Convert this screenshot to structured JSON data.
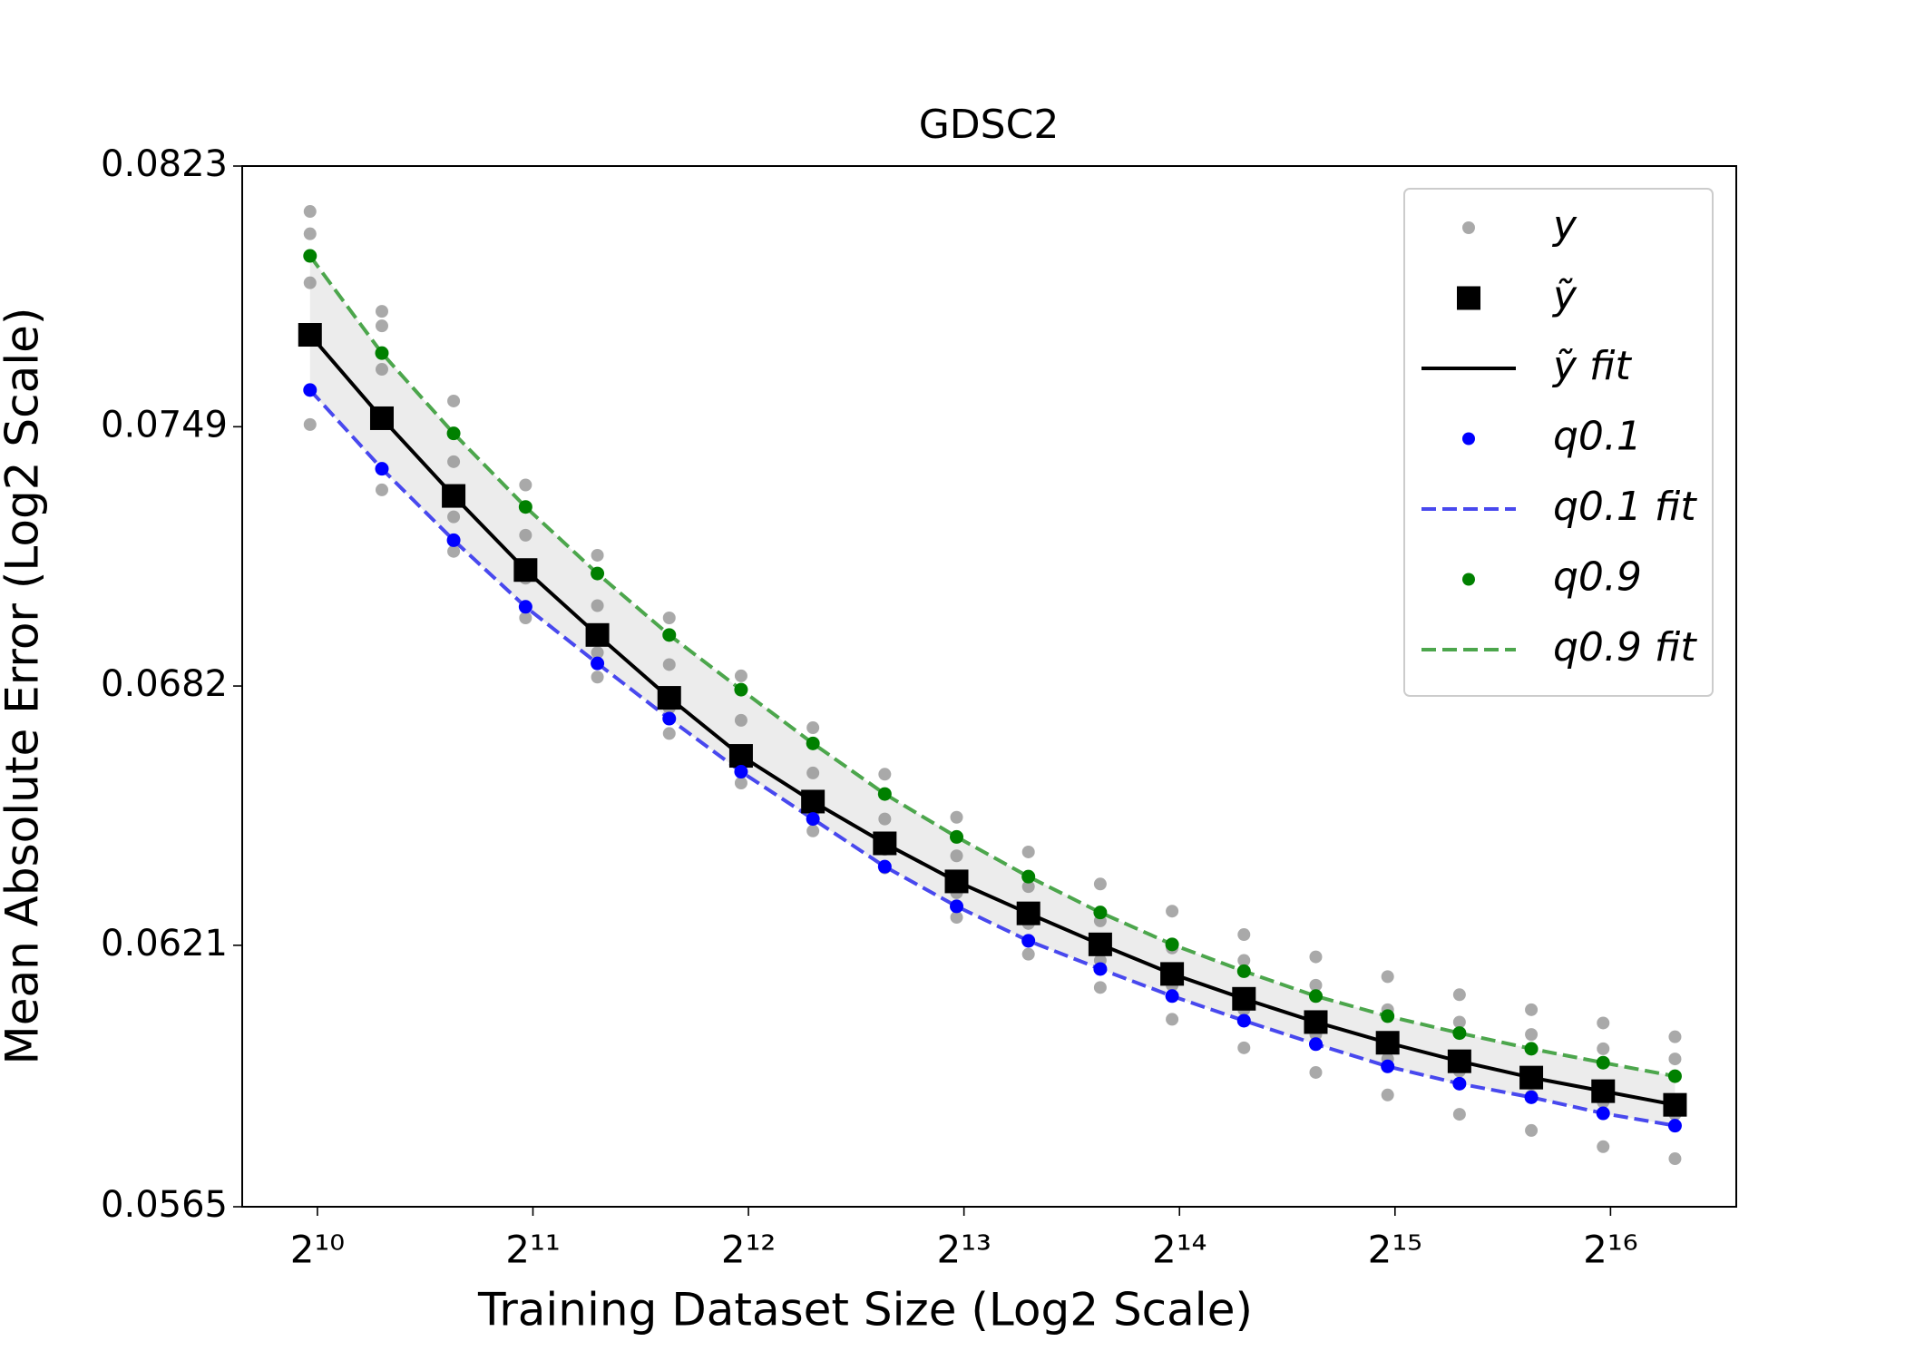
{
  "chart_data": {
    "type": "line",
    "title": "GDSC2",
    "x_label": "Training Dataset Size (Log2 Scale)",
    "y_label": "Mean Absolute Error (Log2 Scale)",
    "x_scale": "log2",
    "y_scale": "log2",
    "grid": false,
    "legend": "upper right",
    "band_color": "#ececec",
    "xlim": [
      804,
      98200
    ],
    "xticks": [
      {
        "value": 1024,
        "label": "2¹⁰"
      },
      {
        "value": 2048,
        "label": "2¹¹"
      },
      {
        "value": 4096,
        "label": "2¹²"
      },
      {
        "value": 8192,
        "label": "2¹³"
      },
      {
        "value": 16384,
        "label": "2¹⁴"
      },
      {
        "value": 32768,
        "label": "2¹⁵"
      },
      {
        "value": 65536,
        "label": "2¹⁶"
      }
    ],
    "ylim": [
      0.0565,
      0.0823
    ],
    "yticks": [
      0.0565,
      0.0621,
      0.0682,
      0.0749,
      0.0823
    ],
    "x": [
      1000,
      1260,
      1587,
      2000,
      2520,
      3175,
      4000,
      5040,
      6350,
      8000,
      10079,
      12699,
      16000,
      20159,
      25398,
      32000,
      40317,
      50797,
      64000,
      80635
    ],
    "series": [
      {
        "name": "y",
        "color": "#8c8c8c",
        "marker": "o",
        "x": [
          1000,
          1000,
          1000,
          1000,
          1260,
          1260,
          1260,
          1260,
          1587,
          1587,
          1587,
          1587,
          2000,
          2000,
          2000,
          2000,
          2520,
          2520,
          2520,
          2520,
          3175,
          3175,
          3175,
          3175,
          4000,
          4000,
          4000,
          4000,
          5040,
          5040,
          5040,
          5040,
          6350,
          6350,
          6350,
          6350,
          8000,
          8000,
          8000,
          8000,
          10079,
          10079,
          10079,
          10079,
          12699,
          12699,
          12699,
          12699,
          16000,
          16000,
          16000,
          16000,
          20159,
          20159,
          20159,
          20159,
          25398,
          25398,
          25398,
          25398,
          32000,
          32000,
          32000,
          32000,
          40317,
          40317,
          40317,
          40317,
          50797,
          50797,
          50797,
          50797,
          64000,
          64000,
          64000,
          64000,
          80635,
          80635,
          80635,
          80635
        ],
        "values": [
          0.08096,
          0.08031,
          0.0789,
          0.07496,
          0.07809,
          0.07768,
          0.07647,
          0.07321,
          0.0756,
          0.07396,
          0.0725,
          0.0716,
          0.07334,
          0.07202,
          0.07091,
          0.0699,
          0.0715,
          0.07021,
          0.06903,
          0.06842,
          0.0699,
          0.06873,
          0.06766,
          0.06704,
          0.06845,
          0.06736,
          0.06632,
          0.06585,
          0.06718,
          0.06609,
          0.06515,
          0.06472,
          0.06606,
          0.065,
          0.06429,
          0.06386,
          0.06504,
          0.06414,
          0.06329,
          0.06273,
          0.06423,
          0.06343,
          0.06259,
          0.0619,
          0.06349,
          0.06265,
          0.06176,
          0.06116,
          0.06287,
          0.06204,
          0.06121,
          0.06046,
          0.06234,
          0.06176,
          0.06067,
          0.05984,
          0.06184,
          0.06121,
          0.06013,
          0.05931,
          0.0614,
          0.06067,
          0.0596,
          0.05883,
          0.061,
          0.0604,
          0.05934,
          0.05842,
          0.06067,
          0.06013,
          0.05881,
          0.05808,
          0.06038,
          0.05982,
          0.05868,
          0.05774,
          0.06008,
          0.0596,
          0.05842,
          0.05749
        ]
      },
      {
        "name": "ỹ",
        "color": "#000000",
        "marker": "s",
        "values": [
          0.07743,
          0.07513,
          0.07305,
          0.07112,
          0.06947,
          0.06791,
          0.0665,
          0.06541,
          0.06443,
          0.06355,
          0.06282,
          0.06212,
          0.06146,
          0.06091,
          0.0604,
          0.05995,
          0.05955,
          0.0592,
          0.05891,
          0.05862
        ]
      },
      {
        "name": "ỹ fit",
        "color": "#000000",
        "linestyle": "solid",
        "values": [
          0.07743,
          0.07513,
          0.07305,
          0.07112,
          0.06947,
          0.06791,
          0.0665,
          0.06541,
          0.06443,
          0.06355,
          0.06282,
          0.06212,
          0.06146,
          0.06091,
          0.0604,
          0.05995,
          0.05955,
          0.0592,
          0.05891,
          0.05862
        ]
      },
      {
        "name": "q0.1",
        "color": "#0000ff",
        "marker": "o",
        "values": [
          0.0759,
          0.07377,
          0.07189,
          0.07018,
          0.06876,
          0.0674,
          0.06612,
          0.065,
          0.06389,
          0.06298,
          0.0622,
          0.06157,
          0.06097,
          0.06043,
          0.05992,
          0.05944,
          0.05907,
          0.05878,
          0.05844,
          0.05818
        ]
      },
      {
        "name": "q0.1 fit",
        "color": "#4848ee",
        "linestyle": "dashed",
        "values": [
          0.0759,
          0.07377,
          0.07189,
          0.07018,
          0.06876,
          0.0674,
          0.06612,
          0.065,
          0.06389,
          0.06298,
          0.0622,
          0.06157,
          0.06097,
          0.06043,
          0.05992,
          0.05944,
          0.05907,
          0.05878,
          0.05844,
          0.05818
        ]
      },
      {
        "name": "q0.9",
        "color": "#008000",
        "marker": "o",
        "values": [
          0.07967,
          0.07692,
          0.07472,
          0.07276,
          0.07103,
          0.06947,
          0.06811,
          0.0668,
          0.06559,
          0.06458,
          0.06366,
          0.06284,
          0.06212,
          0.06152,
          0.06097,
          0.06053,
          0.06016,
          0.05982,
          0.05952,
          0.05923
        ]
      },
      {
        "name": "q0.9 fit",
        "color": "#4ca64c",
        "linestyle": "dashed",
        "values": [
          0.07967,
          0.07692,
          0.07472,
          0.07276,
          0.07103,
          0.06947,
          0.06811,
          0.0668,
          0.06559,
          0.06458,
          0.06366,
          0.06284,
          0.06212,
          0.06152,
          0.06097,
          0.06053,
          0.06016,
          0.05982,
          0.05952,
          0.05923
        ]
      }
    ]
  }
}
